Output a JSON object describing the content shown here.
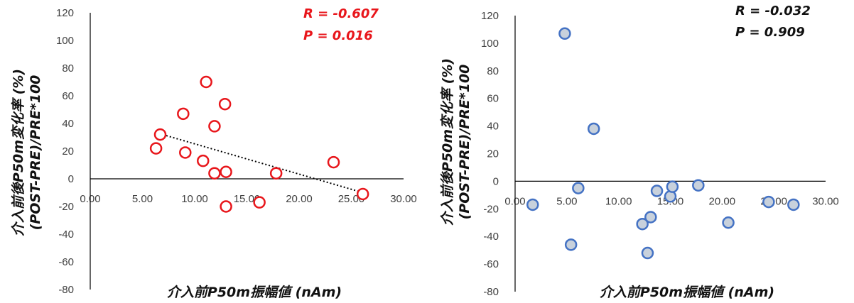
{
  "chart_data": [
    {
      "type": "scatter",
      "xlabel": "介入前P50m振幅値 (nAm)",
      "ylabel_line1": "介入前後P50m変化率 (%)",
      "ylabel_line2": "(POST-PRE)/PRE*100",
      "xlim": [
        0,
        30
      ],
      "ylim": [
        -80,
        120
      ],
      "x_ticks": [
        "0.00",
        "5.00",
        "10.00",
        "15.00",
        "20.00",
        "25.00",
        "30.00"
      ],
      "y_ticks": [
        "120",
        "100",
        "80",
        "60",
        "40",
        "20",
        "0",
        "-20",
        "-40",
        "-60",
        "-80"
      ],
      "stats": {
        "r": "R = -0.607",
        "p": "P = 0.016"
      },
      "stats_color": "#e8161b",
      "marker_stroke": "#e8161b",
      "marker_fill": "#ffffff",
      "trendline": true,
      "points": [
        {
          "x": 6.3,
          "y": 22
        },
        {
          "x": 6.7,
          "y": 32
        },
        {
          "x": 8.9,
          "y": 47
        },
        {
          "x": 9.1,
          "y": 19
        },
        {
          "x": 10.8,
          "y": 13
        },
        {
          "x": 11.1,
          "y": 70
        },
        {
          "x": 11.9,
          "y": 38
        },
        {
          "x": 11.9,
          "y": 4
        },
        {
          "x": 12.9,
          "y": 54
        },
        {
          "x": 13.0,
          "y": 5
        },
        {
          "x": 13.0,
          "y": -20
        },
        {
          "x": 16.2,
          "y": -17
        },
        {
          "x": 17.8,
          "y": 4
        },
        {
          "x": 23.3,
          "y": 12
        },
        {
          "x": 26.1,
          "y": -11
        }
      ]
    },
    {
      "type": "scatter",
      "xlabel": "介入前P50m振幅値 (nAm)",
      "ylabel_line1": "介入前後P50m変化率 (%)",
      "ylabel_line2": "(POST-PRE)/PRE*100",
      "xlim": [
        0,
        30
      ],
      "ylim": [
        -80,
        120
      ],
      "x_ticks": [
        "0.00",
        "5.00",
        "10.00",
        "15.00",
        "20.00",
        "25.00",
        "30.00"
      ],
      "y_ticks": [
        "120",
        "100",
        "80",
        "60",
        "40",
        "20",
        "0",
        "-20",
        "-40",
        "-60",
        "-80"
      ],
      "stats": {
        "r": "R = -0.032",
        "p": "P = 0.909"
      },
      "stats_color": "#111111",
      "marker_stroke": "#4472c4",
      "marker_fill": "#c8d1dc",
      "trendline": false,
      "points": [
        {
          "x": 1.7,
          "y": -17
        },
        {
          "x": 4.8,
          "y": 107
        },
        {
          "x": 5.4,
          "y": -46
        },
        {
          "x": 6.1,
          "y": -5
        },
        {
          "x": 7.6,
          "y": 38
        },
        {
          "x": 12.3,
          "y": -31
        },
        {
          "x": 12.8,
          "y": -52
        },
        {
          "x": 13.1,
          "y": -26
        },
        {
          "x": 13.7,
          "y": -7
        },
        {
          "x": 15.0,
          "y": -11
        },
        {
          "x": 15.2,
          "y": -4
        },
        {
          "x": 17.7,
          "y": -3
        },
        {
          "x": 20.6,
          "y": -30
        },
        {
          "x": 24.5,
          "y": -15
        },
        {
          "x": 26.9,
          "y": -17
        }
      ]
    }
  ]
}
